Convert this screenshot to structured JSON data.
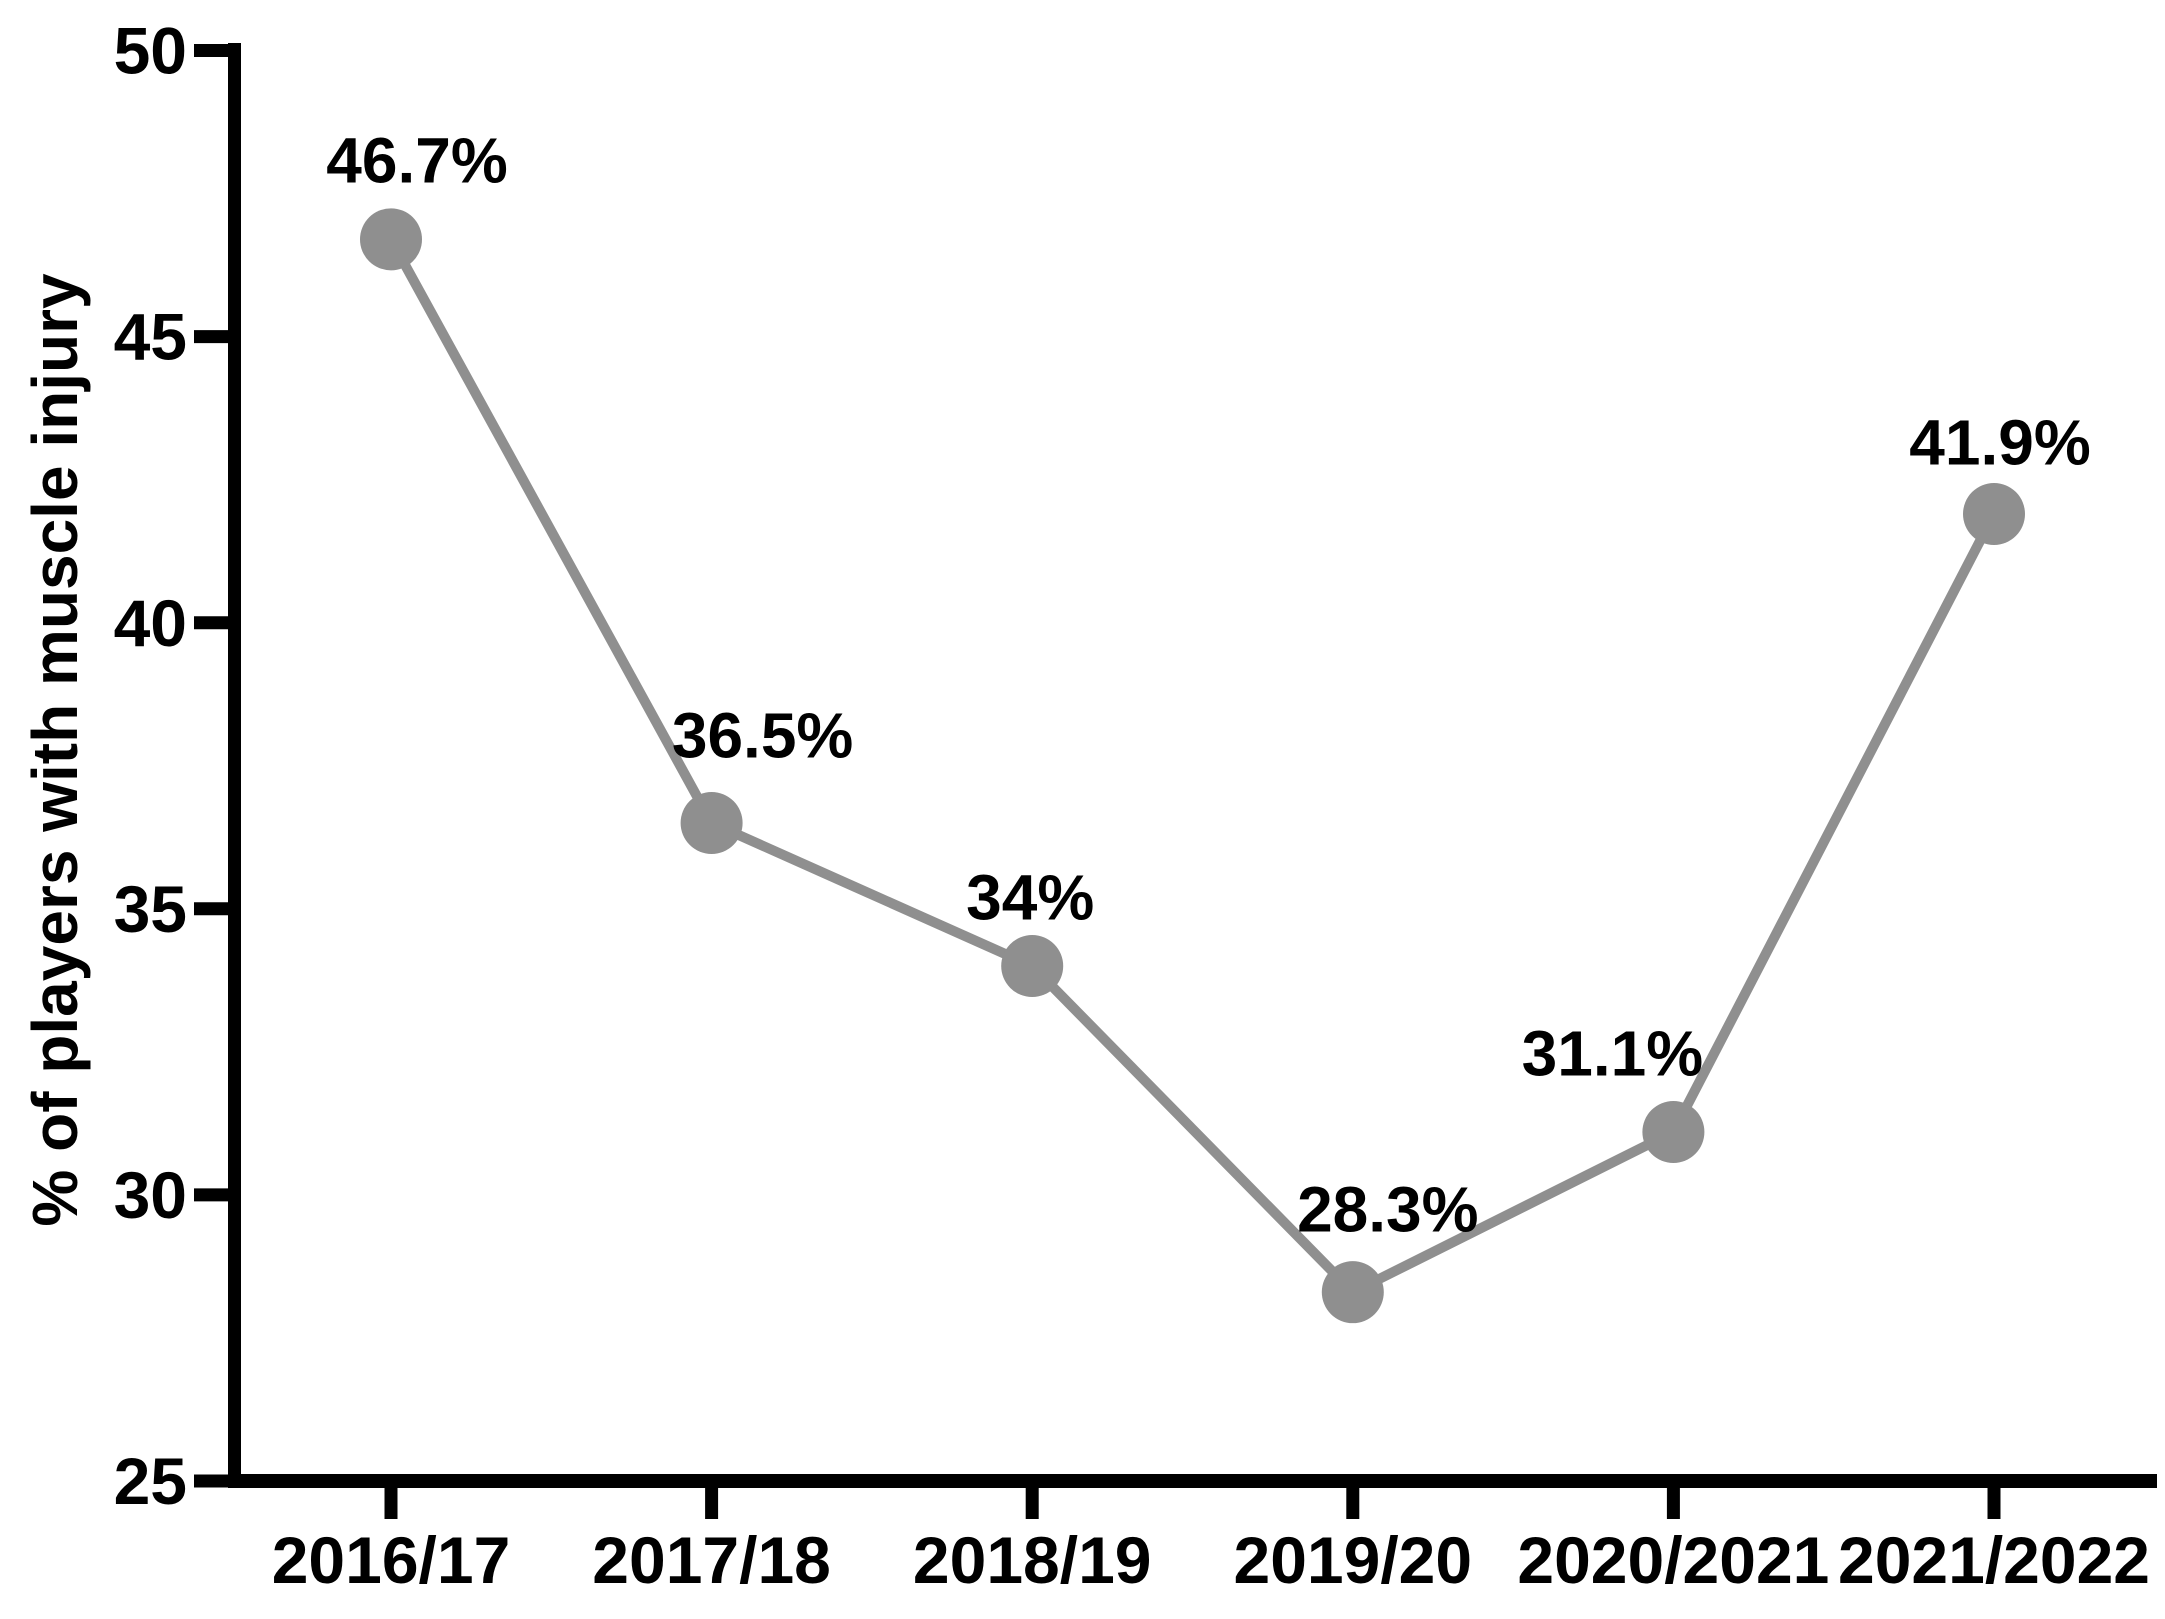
{
  "figure": {
    "background": "#ffffff",
    "axis_color": "#000000",
    "series_color": "#8f8f8f",
    "text_color": "#000000"
  },
  "chart_data": {
    "type": "line",
    "title": "",
    "xlabel": "",
    "ylabel": "% of players with muscle injury",
    "categories": [
      "2016/17",
      "2017/18",
      "2018/19",
      "2019/20",
      "2020/2021",
      "2021/2022"
    ],
    "values": [
      46.7,
      36.5,
      34,
      28.3,
      31.1,
      41.9
    ],
    "point_labels": [
      "46.7%",
      "36.5%",
      "34%",
      "28.3%",
      "31.1%",
      "41.9%"
    ],
    "yticks": [
      25,
      30,
      35,
      40,
      45,
      50
    ],
    "ytick_labels": [
      "25",
      "30",
      "35",
      "40",
      "45",
      "50"
    ],
    "ylim": [
      25,
      50
    ],
    "grid": false,
    "legend": "none",
    "marker": "circle"
  }
}
